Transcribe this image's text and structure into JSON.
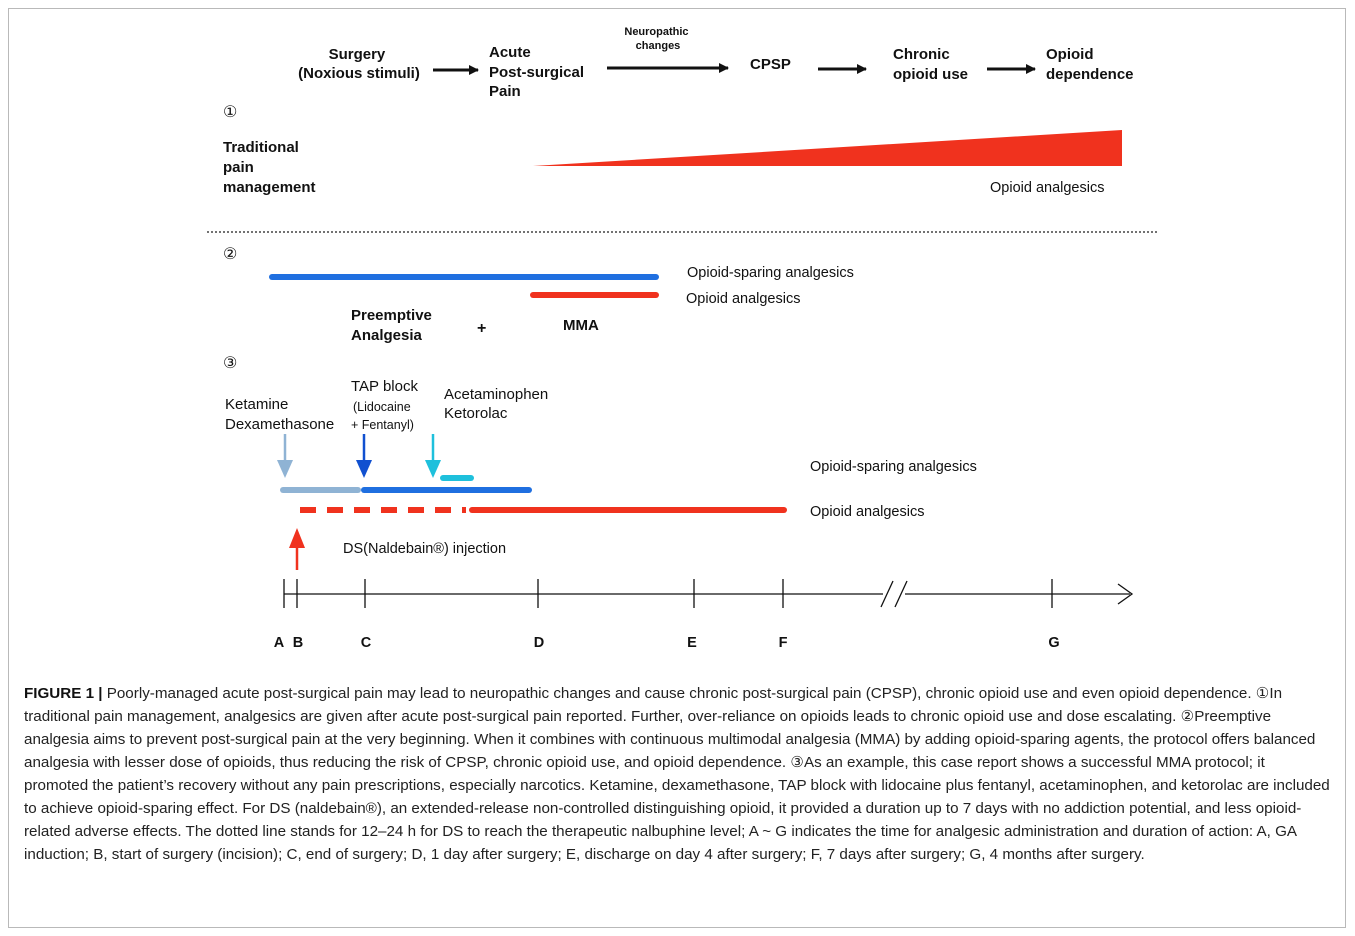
{
  "flow": {
    "step1": [
      "Surgery",
      "(Noxious stimuli)"
    ],
    "step2": [
      "Acute",
      "Post-surgical",
      "Pain"
    ],
    "neuro": [
      "Neuropathic",
      "changes"
    ],
    "step3": "CPSP",
    "step4": [
      "Chronic",
      "opioid use"
    ],
    "step5": [
      "Opioid",
      "dependence"
    ]
  },
  "section1": {
    "num": "①",
    "title": [
      "Traditional",
      "pain",
      "management"
    ],
    "wedge_label": "Opioid analgesics"
  },
  "section2": {
    "num": "②",
    "blue_label": "Opioid-sparing analgesics",
    "red_label": "Opioid analgesics",
    "preemptive": [
      "Preemptive",
      "Analgesia"
    ],
    "plus": "+",
    "mma": "MMA"
  },
  "section3": {
    "num": "③",
    "drug1": [
      "Ketamine",
      "Dexamethasone"
    ],
    "drug2": [
      "TAP block",
      "(Lidocaine",
      "+ Fentanyl)"
    ],
    "drug3": [
      "Acetaminophen",
      "Ketorolac"
    ],
    "blue_label": "Opioid-sparing analgesics",
    "red_label": "Opioid analgesics",
    "ds_label": "DS(Naldebain®) injection"
  },
  "timeline": {
    "ticks": [
      "A",
      "B",
      "C",
      "D",
      "E",
      "F",
      "G"
    ]
  },
  "colors": {
    "red": "#f0321e",
    "blue": "#1f6fe0",
    "light_blue": "#8fb3d4",
    "cyan": "#1ec0dc",
    "dark_blue": "#1050d0"
  },
  "caption": {
    "label": "FIGURE 1 |",
    "text": " Poorly-managed acute post-surgical pain may lead to neuropathic changes and cause chronic post-surgical pain (CPSP), chronic opioid use and even opioid dependence. ①In traditional pain management, analgesics are given after acute post-surgical pain reported. Further, over-reliance on opioids leads to chronic opioid use and dose escalating. ②Preemptive analgesia aims to prevent post-surgical pain at the very beginning. When it combines with continuous multimodal analgesia (MMA) by adding opioid-sparing agents, the protocol offers balanced analgesia with lesser dose of opioids, thus reducing the risk of CPSP, chronic opioid use, and opioid dependence. ③As an example, this case report shows a successful MMA protocol; it promoted the patient’s recovery without any pain prescriptions, especially narcotics. Ketamine, dexamethasone, TAP block with lidocaine plus fentanyl, acetaminophen, and ketorolac are included to achieve opioid-sparing effect. For DS (naldebain®), an extended-release non-controlled distinguishing opioid, it provided a duration up to 7 days with no addiction potential, and less opioid-related adverse effects. The dotted line stands for 12–24 h for DS to reach the therapeutic nalbuphine level; A ~ G indicates the time for analgesic administration and duration of action: A, GA induction; B, start of surgery (incision); C, end of surgery; D, 1 day after surgery; E, discharge on day 4 after surgery; F, 7 days after surgery; G, 4 months after surgery."
  }
}
